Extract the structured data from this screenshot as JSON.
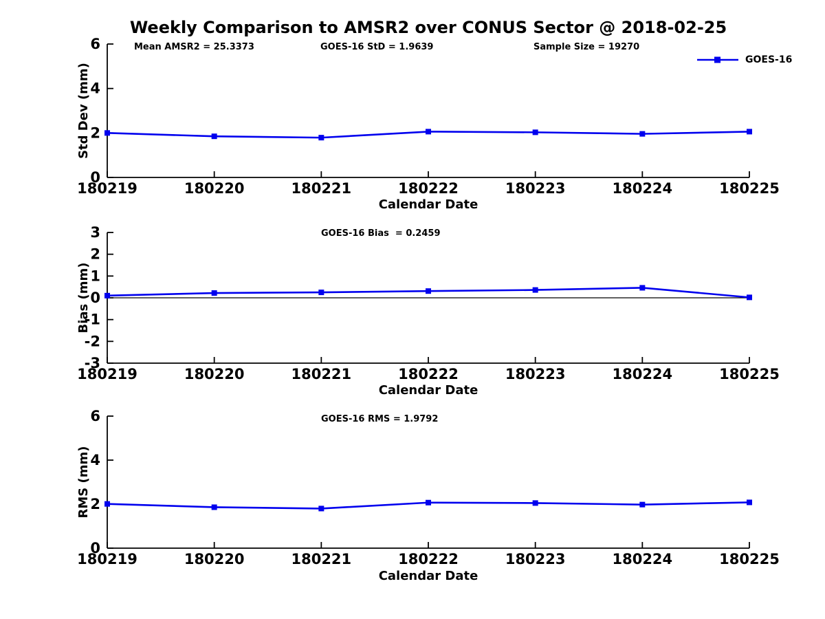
{
  "title": "Weekly Comparison to AMSR2 over CONUS Sector @ 2018-02-25",
  "colors": {
    "series": "#0000ee",
    "axis": "#000000",
    "background": "#ffffff"
  },
  "legend": {
    "label": "GOES-16",
    "position": "top-right",
    "marker": "square-icon"
  },
  "chart_data": [
    {
      "type": "line",
      "panel": "std-dev",
      "annotations": [
        "Mean AMSR2 = 25.3373",
        "GOES-16 StD = 1.9639",
        "Sample Size = 19270"
      ],
      "ylabel": "Std Dev (mm)",
      "xlabel": "Calendar Date",
      "categories": [
        "180219",
        "180220",
        "180221",
        "180222",
        "180223",
        "180224",
        "180225"
      ],
      "series": [
        {
          "name": "GOES-16",
          "values": [
            2.0,
            1.85,
            1.79,
            2.06,
            2.03,
            1.96,
            2.06
          ]
        }
      ],
      "ylim": [
        0,
        6
      ],
      "yticks": [
        0,
        2,
        4,
        6
      ],
      "grid": false,
      "zero_line": false
    },
    {
      "type": "line",
      "panel": "bias",
      "annotations": [
        "GOES-16 Bias  = 0.2459"
      ],
      "ylabel": "Bias (mm)",
      "xlabel": "Calendar Date",
      "categories": [
        "180219",
        "180220",
        "180221",
        "180222",
        "180223",
        "180224",
        "180225"
      ],
      "series": [
        {
          "name": "GOES-16",
          "values": [
            0.1,
            0.22,
            0.25,
            0.31,
            0.36,
            0.46,
            0.02
          ]
        }
      ],
      "ylim": [
        -3,
        3
      ],
      "yticks": [
        -3,
        -2,
        -1,
        0,
        1,
        2,
        3
      ],
      "grid": false,
      "zero_line": true
    },
    {
      "type": "line",
      "panel": "rms",
      "annotations": [
        "GOES-16 RMS = 1.9792"
      ],
      "ylabel": "RMS (mm)",
      "xlabel": "Calendar Date",
      "categories": [
        "180219",
        "180220",
        "180221",
        "180222",
        "180223",
        "180224",
        "180225"
      ],
      "series": [
        {
          "name": "GOES-16",
          "values": [
            2.01,
            1.86,
            1.8,
            2.07,
            2.05,
            1.98,
            2.08
          ]
        }
      ],
      "ylim": [
        0,
        6
      ],
      "yticks": [
        0,
        2,
        4,
        6
      ],
      "grid": false,
      "zero_line": false
    }
  ]
}
